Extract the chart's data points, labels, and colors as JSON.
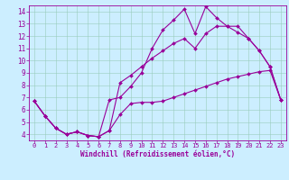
{
  "xlabel": "Windchill (Refroidissement éolien,°C)",
  "bg_color": "#cceeff",
  "line_color": "#990099",
  "grid_color": "#99ccbb",
  "xlim": [
    -0.5,
    23.5
  ],
  "ylim": [
    3.5,
    14.5
  ],
  "xticks": [
    0,
    1,
    2,
    3,
    4,
    5,
    6,
    7,
    8,
    9,
    10,
    11,
    12,
    13,
    14,
    15,
    16,
    17,
    18,
    19,
    20,
    21,
    22,
    23
  ],
  "yticks": [
    4,
    5,
    6,
    7,
    8,
    9,
    10,
    11,
    12,
    13,
    14
  ],
  "line1_x": [
    0,
    1,
    2,
    3,
    4,
    5,
    6,
    7,
    8,
    9,
    10,
    11,
    12,
    13,
    14,
    15,
    16,
    17,
    18,
    19,
    20,
    21,
    22,
    23
  ],
  "line1_y": [
    6.7,
    5.5,
    4.5,
    4.0,
    4.2,
    3.9,
    3.8,
    4.3,
    5.6,
    6.5,
    6.6,
    6.6,
    6.7,
    7.0,
    7.3,
    7.6,
    7.9,
    8.2,
    8.5,
    8.7,
    8.9,
    9.1,
    9.2,
    6.8
  ],
  "line2_x": [
    0,
    1,
    2,
    3,
    4,
    5,
    6,
    7,
    8,
    9,
    10,
    11,
    12,
    13,
    14,
    15,
    16,
    17,
    18,
    19,
    20,
    21,
    22,
    23
  ],
  "line2_y": [
    6.7,
    5.5,
    4.5,
    4.0,
    4.2,
    3.9,
    3.8,
    6.8,
    7.0,
    7.9,
    9.0,
    11.0,
    12.5,
    13.3,
    14.2,
    12.2,
    14.4,
    13.5,
    12.8,
    12.8,
    11.8,
    10.8,
    9.5,
    6.8
  ],
  "line3_x": [
    0,
    1,
    2,
    3,
    4,
    5,
    6,
    7,
    8,
    9,
    10,
    11,
    12,
    13,
    14,
    15,
    16,
    17,
    18,
    19,
    20,
    21,
    22,
    23
  ],
  "line3_y": [
    6.7,
    5.5,
    4.5,
    4.0,
    4.2,
    3.9,
    3.8,
    4.3,
    8.2,
    8.8,
    9.5,
    10.2,
    10.8,
    11.4,
    11.8,
    11.0,
    12.2,
    12.8,
    12.8,
    12.3,
    11.8,
    10.8,
    9.5,
    6.8
  ],
  "tick_fontsize": 5.0,
  "xlabel_fontsize": 5.5,
  "marker_size": 2.0,
  "linewidth": 0.8
}
